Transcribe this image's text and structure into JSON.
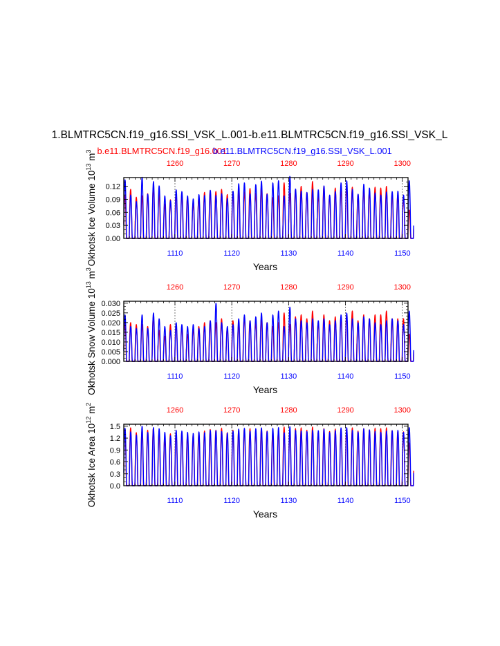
{
  "title": "1.BLMTRC5CN.f19_g16.SSI_VSK_L.001-b.e11.BLMTRC5CN.f19_g16.SSI_VSK_L",
  "legend": {
    "red_case": "b.e11.BLMTRC5CN.f19_g16.001",
    "blue_case": "b.e11.BLMTRC5CN.f19_g16.SSI_VSK_L.001"
  },
  "colors": {
    "red": "#ff0000",
    "blue": "#0000ff",
    "axis": "#000000",
    "grid": "#555555"
  },
  "chart_data": [
    {
      "type": "line",
      "id": "ice_volume",
      "ylabel": "Okhotsk Ice Volume 10",
      "ylabel_exp": "13",
      "ylabel_unit": " m",
      "ylabel_unit_exp": "3",
      "xlabel": "Years",
      "xlim": [
        1101,
        1151
      ],
      "ylim": [
        0,
        0.14
      ],
      "yticks": [
        0,
        0.03,
        0.06,
        0.09,
        0.12
      ],
      "ytick_labels": [
        "0.00",
        "0.03",
        "0.06",
        "0.09",
        "0.12"
      ],
      "bottom_ticks": [
        1110,
        1120,
        1130,
        1140,
        1150
      ],
      "top_ticks": [
        1260,
        1270,
        1280,
        1290,
        1300
      ],
      "top_offset": 150,
      "grid_x": [
        1110,
        1120,
        1130,
        1140,
        1150
      ],
      "series": [
        {
          "name": "b.e11.BLMTRC5CN.f19_g16.001",
          "color": "#ff0000",
          "peaks": [
            0.098,
            0.113,
            0.095,
            0.098,
            0.103,
            0.118,
            0.103,
            0.079,
            0.089,
            0.103,
            0.103,
            0.095,
            0.082,
            0.094,
            0.106,
            0.11,
            0.108,
            0.113,
            0.101,
            0.106,
            0.108,
            0.107,
            0.115,
            0.104,
            0.118,
            0.103,
            0.094,
            0.098,
            0.128,
            0.104,
            0.113,
            0.12,
            0.106,
            0.131,
            0.1,
            0.12,
            0.098,
            0.116,
            0.115,
            0.118,
            0.118,
            0.101,
            0.113,
            0.108,
            0.118,
            0.116,
            0.12,
            0.105,
            0.101,
            0.097,
            0.065
          ]
        },
        {
          "name": "b.e11.BLMTRC5CN.f19_g16.SSI_VSK_L.001",
          "color": "#0000ff",
          "peaks": [
            0.135,
            0.1,
            0.085,
            0.141,
            0.102,
            0.131,
            0.121,
            0.098,
            0.087,
            0.112,
            0.108,
            0.098,
            0.091,
            0.101,
            0.099,
            0.111,
            0.099,
            0.103,
            0.092,
            0.109,
            0.126,
            0.128,
            0.103,
            0.124,
            0.132,
            0.102,
            0.128,
            0.133,
            0.098,
            0.143,
            0.114,
            0.109,
            0.106,
            0.113,
            0.112,
            0.121,
            0.1,
            0.108,
            0.128,
            0.133,
            0.113,
            0.102,
            0.125,
            0.116,
            0.105,
            0.1,
            0.107,
            0.108,
            0.109,
            0.1,
            0.133
          ]
        }
      ]
    },
    {
      "type": "line",
      "id": "snow_volume",
      "ylabel": "Okhotsk Snow Volume 10",
      "ylabel_exp": "13",
      "ylabel_unit": " m",
      "ylabel_unit_exp": "3",
      "xlabel": "Years",
      "xlim": [
        1101,
        1151
      ],
      "ylim": [
        0,
        0.031
      ],
      "yticks": [
        0,
        0.005,
        0.01,
        0.015,
        0.02,
        0.025,
        0.03
      ],
      "ytick_labels": [
        "0.000",
        "0.005",
        "0.010",
        "0.015",
        "0.020",
        "0.025",
        "0.030"
      ],
      "bottom_ticks": [
        1110,
        1120,
        1130,
        1140,
        1150
      ],
      "top_ticks": [
        1260,
        1270,
        1280,
        1290,
        1300
      ],
      "top_offset": 150,
      "grid_x": [
        1110,
        1120,
        1130,
        1140,
        1150
      ],
      "series": [
        {
          "name": "b.e11.BLMTRC5CN.f19_g16.001",
          "color": "#ff0000",
          "peaks": [
            0.02,
            0.02,
            0.019,
            0.019,
            0.018,
            0.023,
            0.016,
            0.013,
            0.019,
            0.019,
            0.018,
            0.014,
            0.017,
            0.018,
            0.02,
            0.021,
            0.02,
            0.022,
            0.017,
            0.021,
            0.019,
            0.023,
            0.021,
            0.02,
            0.022,
            0.02,
            0.018,
            0.02,
            0.025,
            0.019,
            0.023,
            0.024,
            0.022,
            0.026,
            0.02,
            0.024,
            0.021,
            0.023,
            0.023,
            0.024,
            0.026,
            0.021,
            0.024,
            0.022,
            0.024,
            0.024,
            0.026,
            0.022,
            0.022,
            0.022,
            0.014
          ]
        },
        {
          "name": "b.e11.BLMTRC5CN.f19_g16.SSI_VSK_L.001",
          "color": "#0000ff",
          "peaks": [
            0.024,
            0.018,
            0.017,
            0.024,
            0.017,
            0.025,
            0.022,
            0.018,
            0.016,
            0.02,
            0.019,
            0.018,
            0.019,
            0.017,
            0.018,
            0.021,
            0.03,
            0.02,
            0.018,
            0.019,
            0.022,
            0.024,
            0.021,
            0.023,
            0.025,
            0.02,
            0.024,
            0.026,
            0.018,
            0.028,
            0.022,
            0.021,
            0.02,
            0.022,
            0.021,
            0.022,
            0.019,
            0.021,
            0.024,
            0.025,
            0.022,
            0.02,
            0.023,
            0.022,
            0.02,
            0.019,
            0.021,
            0.022,
            0.021,
            0.019,
            0.026
          ]
        }
      ]
    },
    {
      "type": "line",
      "id": "ice_area",
      "ylabel": "Okhotsk Ice Area 10",
      "ylabel_exp": "12",
      "ylabel_unit": " m",
      "ylabel_unit_exp": "2",
      "xlabel": "Years",
      "xlim": [
        1101,
        1151
      ],
      "ylim": [
        0,
        1.55
      ],
      "yticks": [
        0,
        0.3,
        0.6,
        0.9,
        1.2,
        1.5
      ],
      "ytick_labels": [
        "0.0",
        "0.3",
        "0.6",
        "0.9",
        "1.2",
        "1.5"
      ],
      "bottom_ticks": [
        1110,
        1120,
        1130,
        1140,
        1150
      ],
      "top_ticks": [
        1260,
        1270,
        1280,
        1290,
        1300
      ],
      "top_offset": 150,
      "grid_x": [
        1110,
        1120,
        1130,
        1140,
        1150
      ],
      "series": [
        {
          "name": "b.e11.BLMTRC5CN.f19_g16.001",
          "color": "#ff0000",
          "peaks": [
            1.42,
            1.46,
            1.34,
            1.38,
            1.4,
            1.45,
            1.34,
            1.2,
            1.31,
            1.33,
            1.35,
            1.25,
            1.26,
            1.33,
            1.38,
            1.42,
            1.4,
            1.45,
            1.34,
            1.4,
            1.39,
            1.43,
            1.44,
            1.38,
            1.45,
            1.38,
            1.32,
            1.36,
            1.48,
            1.37,
            1.44,
            1.46,
            1.4,
            1.48,
            1.35,
            1.44,
            1.37,
            1.43,
            1.43,
            1.44,
            1.46,
            1.38,
            1.44,
            1.41,
            1.45,
            1.44,
            1.46,
            1.39,
            1.38,
            1.36,
            1.08
          ]
        },
        {
          "name": "b.e11.BLMTRC5CN.f19_g16.SSI_VSK_L.001",
          "color": "#0000ff",
          "peaks": [
            1.45,
            1.36,
            1.28,
            1.5,
            1.35,
            1.47,
            1.44,
            1.35,
            1.26,
            1.4,
            1.38,
            1.35,
            1.32,
            1.36,
            1.34,
            1.4,
            1.39,
            1.37,
            1.33,
            1.38,
            1.43,
            1.45,
            1.38,
            1.44,
            1.46,
            1.37,
            1.45,
            1.47,
            1.34,
            1.49,
            1.4,
            1.38,
            1.37,
            1.4,
            1.39,
            1.43,
            1.35,
            1.39,
            1.46,
            1.47,
            1.4,
            1.36,
            1.44,
            1.41,
            1.37,
            1.35,
            1.38,
            1.39,
            1.4,
            1.35,
            1.47
          ]
        }
      ]
    }
  ]
}
